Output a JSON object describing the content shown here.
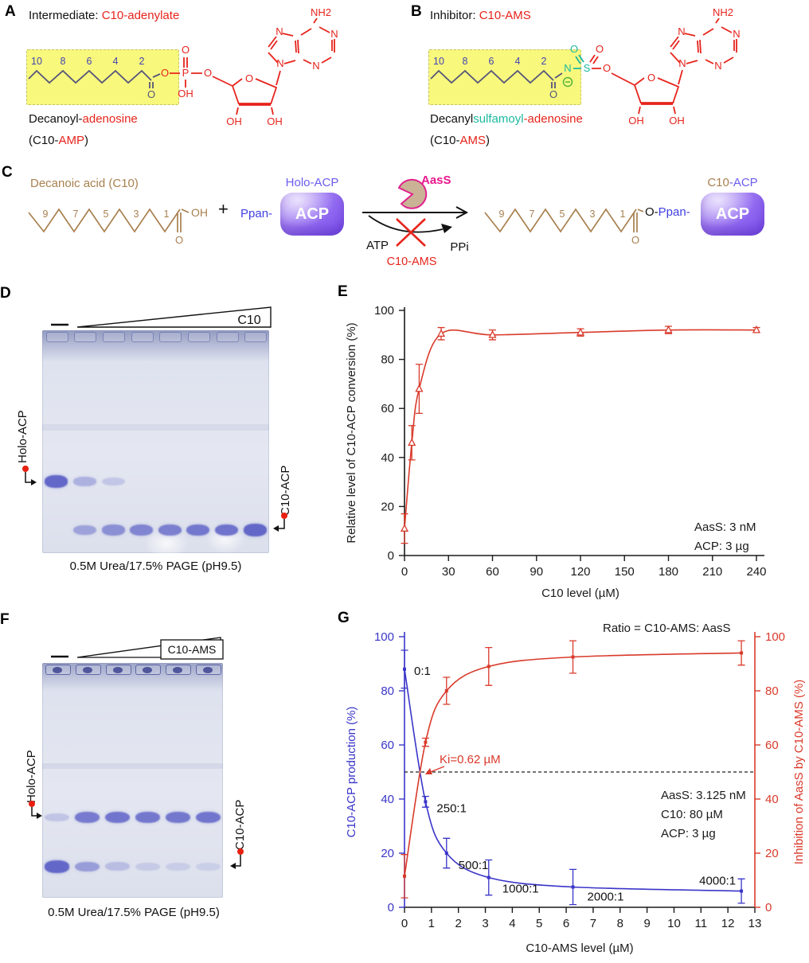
{
  "colors": {
    "structure_red": "#e6241c",
    "chain_navy": "#55557a",
    "carbon_number_blue": "#4343b2",
    "teal": "#1cb8a0",
    "charge_green": "#54b43c",
    "brown": "#a8804f",
    "acp_purple": "#8a5cf0",
    "ppan_blue": "#3f3fe0",
    "holo_label_purple": "#6a5cf0",
    "aass_magenta": "#e8178e",
    "chart_red": "#d93a2b",
    "chart_blue": "#3a35c8",
    "highlight_yellow": "#f8f87d",
    "gel_band_blue": "#585cc4",
    "marker_dot_red": "#e82010"
  },
  "atoms": {
    "O": "O",
    "OH": "OH",
    "P": "P",
    "N": "N",
    "S": "S",
    "NH2": "NH2",
    "minus": "−",
    "plus": "+"
  },
  "panels": {
    "a": {
      "letter": "A",
      "title_black": "Intermediate: ",
      "title_red": "C10-adenylate",
      "chain_numbers": [
        "10",
        "8",
        "6",
        "4",
        "2"
      ],
      "name_black": "Decanoyl-",
      "name_red": "adenosine",
      "abbr_pre": "(C10-",
      "abbr_red": "AMP",
      "abbr_post": ")"
    },
    "b": {
      "letter": "B",
      "title_black": "Inhibitor: ",
      "title_red": "C10-AMS",
      "chain_numbers": [
        "10",
        "8",
        "6",
        "4",
        "2"
      ],
      "name_black": "Decanyl",
      "name_teal": "sulfamoyl",
      "name_red": "-adenosine",
      "abbr_pre": "(C10-",
      "abbr_red": "AMS",
      "abbr_post": ")"
    },
    "c": {
      "letter": "C",
      "substrate": "Decanoic acid (C10)",
      "substrate_numbers": [
        "9",
        "7",
        "5",
        "3",
        "1"
      ],
      "product_numbers": [
        "9",
        "7",
        "5",
        "3",
        "1"
      ],
      "ppan": "Ppan-",
      "acp": "ACP",
      "holo": "Holo-ACP",
      "aass": "AasS",
      "atp": "ATP",
      "ppi": "PPi",
      "inhibitor": "C10-AMS",
      "o_ppan_black": "O-",
      "o_ppan_blue": "Ppan-",
      "product_label_c10": "C10",
      "product_label_acp": "-ACP"
    },
    "d": {
      "letter": "D",
      "wedge_label": "C10",
      "control_mark": "—",
      "left_label": "Holo-ACP",
      "right_label": "C10-ACP",
      "caption": "0.5M Urea/17.5% PAGE (pH9.5)",
      "lanes": 8,
      "holo_band_intensity": [
        1,
        0.32,
        0.12,
        0,
        0,
        0,
        0,
        0
      ],
      "c10_band_intensity": [
        0,
        0.45,
        0.62,
        0.72,
        0.78,
        0.85,
        0.9,
        1
      ]
    },
    "f": {
      "letter": "F",
      "wedge_label": "C10-AMS",
      "control_mark": "—",
      "left_label": "Holo-ACP",
      "right_label": "C10-ACP",
      "caption": "0.5M Urea/17.5% PAGE (pH9.5)",
      "lanes": 6,
      "holo_band_intensity": [
        0.15,
        0.82,
        0.88,
        0.85,
        0.85,
        0.88
      ],
      "c10_band_intensity": [
        1,
        0.5,
        0.2,
        0.08,
        0.05,
        0.03
      ]
    },
    "e": {
      "letter": "E"
    },
    "g": {
      "letter": "G"
    }
  },
  "chart_data": [
    {
      "id": "E",
      "type": "line",
      "xlabel": "C10 level (µM)",
      "ylabel": "Relative level of C10-ACP conversion (%)",
      "xlim": [
        0,
        240
      ],
      "ylim": [
        0,
        100
      ],
      "xticks": [
        0,
        30,
        60,
        90,
        120,
        150,
        180,
        210,
        240
      ],
      "yticks": [
        0,
        20,
        40,
        60,
        80,
        100
      ],
      "grid": false,
      "series": [
        {
          "name": "C10-ACP conversion",
          "color": "#d93a2b",
          "marker": "triangle-open",
          "x": [
            0,
            5,
            10,
            25,
            60,
            120,
            180,
            240
          ],
          "y": [
            11,
            46,
            68,
            90.5,
            90,
            91,
            92,
            92
          ],
          "yerr": [
            6,
            7,
            10,
            2.5,
            2,
            1.5,
            1.5,
            1
          ]
        }
      ],
      "annotations": [
        "AasS: 3 nM",
        "ACP: 3 µg"
      ]
    },
    {
      "id": "G",
      "type": "line-dual-axis",
      "xlabel": "C10-AMS level (µM)",
      "ylabel_left": "C10-ACP production (%)",
      "ylabel_right": "Inhibition of AasS by C10-AMS (%)",
      "xlim": [
        0,
        13
      ],
      "ylim": [
        0,
        100
      ],
      "xticks": [
        0,
        1,
        2,
        3,
        4,
        5,
        6,
        7,
        8,
        9,
        10,
        11,
        12,
        13
      ],
      "yticks": [
        0,
        20,
        40,
        60,
        80,
        100
      ],
      "grid": false,
      "top_annotation": "Ratio = C10-AMS: AasS",
      "dashed_line_y": 50,
      "ki_annotation": "Ki=0.62 µM",
      "series": [
        {
          "name": "C10-ACP production",
          "axis": "left",
          "color": "#3a35c8",
          "marker": "square",
          "x": [
            0,
            0.78,
            1.56,
            3.125,
            6.25,
            12.5
          ],
          "y": [
            88,
            39,
            20,
            11,
            7.5,
            6
          ],
          "yerr": [
            7,
            2,
            5.5,
            6.5,
            6.5,
            4.5
          ],
          "point_labels": [
            "0:1",
            "250:1",
            "500:1",
            "1000:1",
            "2000:1",
            "4000:1"
          ]
        },
        {
          "name": "Inhibition of AasS by C10-AMS",
          "axis": "right",
          "color": "#d93a2b",
          "marker": "square",
          "x": [
            0,
            0.78,
            1.56,
            3.125,
            6.25,
            12.5
          ],
          "y": [
            11.5,
            61,
            80,
            89,
            92.5,
            94
          ],
          "yerr": [
            8,
            1.5,
            5,
            7,
            6,
            4.5
          ]
        }
      ],
      "annotations": [
        "AasS: 3.125 nM",
        "C10: 80 µM",
        "ACP: 3 µg"
      ]
    }
  ]
}
